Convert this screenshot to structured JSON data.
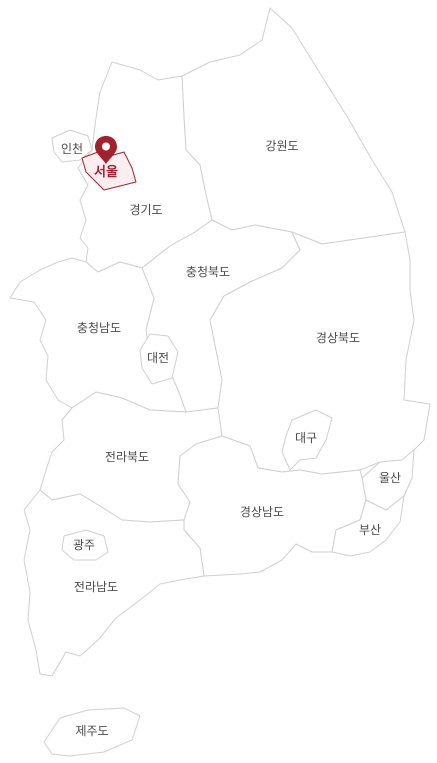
{
  "map": {
    "selected_region": "서울",
    "accent_color": "#a3202e",
    "regions": {
      "incheon": "인천",
      "seoul": "서울",
      "gyeonggi": "경기도",
      "gangwon": "강원도",
      "chungbuk": "충청북도",
      "chungnam": "충청남도",
      "daejeon": "대전",
      "gyeongbuk": "경상북도",
      "daegu": "대구",
      "jeonbuk": "전라북도",
      "ulsan": "울산",
      "gyeongnam": "경상남도",
      "busan": "부산",
      "gwangju": "광주",
      "jeonnam": "전라남도",
      "jeju": "제주도"
    },
    "pin_icon": "location-pin-icon"
  }
}
